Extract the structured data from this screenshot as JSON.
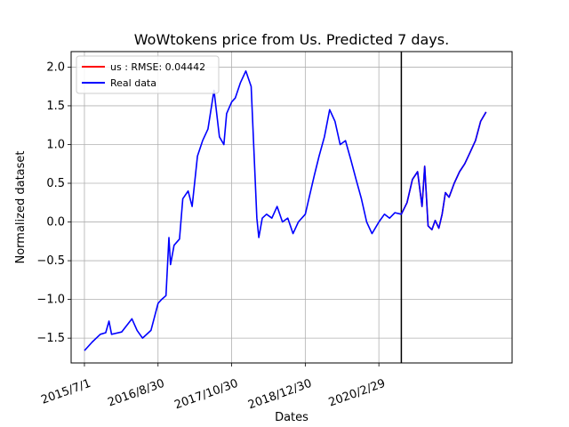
{
  "chart_data": {
    "type": "line",
    "title": "WoWtokens price from Us. Predicted 7 days.",
    "xlabel": "Dates",
    "ylabel": "Normalized dataset",
    "ylim": [
      -1.82,
      2.2
    ],
    "y_ticks": [
      -1.5,
      -1.0,
      -0.5,
      0.0,
      0.5,
      1.0,
      1.5,
      2.0
    ],
    "y_tick_labels": [
      "−1.5",
      "−1.0",
      "−0.5",
      "0.0",
      "0.5",
      "1.0",
      "1.5",
      "2.0"
    ],
    "x_range": [
      "2015-04-15",
      "2022-04-10"
    ],
    "x_ticks": [
      "2015-07-01",
      "2016-08-30",
      "2017-10-30",
      "2018-12-30",
      "2020-02-29"
    ],
    "x_tick_labels": [
      "2015/7/1",
      "2016/8/30",
      "2017/10/30",
      "2018/12/30",
      "2020/2/29"
    ],
    "grid": true,
    "legend_position": "top-left",
    "vertical_line": "2020-07-08",
    "series": [
      {
        "name": "us : RMSE: 0.04442",
        "color": "#ff0000",
        "x": [
          "2020-07-08",
          "2020-08-10",
          "2020-09-10",
          "2020-10-10",
          "2020-11-05",
          "2020-11-20",
          "2020-12-10",
          "2021-01-01",
          "2021-01-20",
          "2021-02-10",
          "2021-03-01",
          "2021-03-20",
          "2021-04-10",
          "2021-05-10",
          "2021-06-10",
          "2021-07-10",
          "2021-08-10",
          "2021-09-10",
          "2021-10-10",
          "2021-11-10"
        ],
        "values": [
          0.1,
          0.25,
          0.55,
          0.65,
          0.2,
          0.72,
          -0.05,
          -0.1,
          0.02,
          -0.08,
          0.1,
          0.38,
          0.32,
          0.5,
          0.65,
          0.75,
          0.9,
          1.05,
          1.3,
          1.42
        ]
      },
      {
        "name": "Real data",
        "color": "#0000ff",
        "x": [
          "2015-07-01",
          "2015-08-15",
          "2015-10-01",
          "2015-11-01",
          "2015-11-20",
          "2015-12-05",
          "2016-02-01",
          "2016-04-01",
          "2016-05-01",
          "2016-06-01",
          "2016-07-20",
          "2016-08-30",
          "2016-09-20",
          "2016-10-15",
          "2016-11-01",
          "2016-11-10",
          "2016-12-01",
          "2017-01-01",
          "2017-01-20",
          "2017-02-20",
          "2017-03-15",
          "2017-04-15",
          "2017-05-15",
          "2017-06-15",
          "2017-07-20",
          "2017-08-20",
          "2017-09-15",
          "2017-10-01",
          "2017-10-30",
          "2017-11-20",
          "2017-12-20",
          "2018-01-20",
          "2018-02-20",
          "2018-03-25",
          "2018-04-05",
          "2018-04-25",
          "2018-05-20",
          "2018-06-20",
          "2018-07-20",
          "2018-08-20",
          "2018-09-20",
          "2018-10-20",
          "2018-11-20",
          "2018-12-30",
          "2019-01-20",
          "2019-02-20",
          "2019-03-20",
          "2019-04-20",
          "2019-05-20",
          "2019-06-20",
          "2019-07-20",
          "2019-08-20",
          "2019-09-20",
          "2019-10-20",
          "2019-11-20",
          "2019-12-20",
          "2020-01-20",
          "2020-02-29",
          "2020-04-01",
          "2020-05-01",
          "2020-06-01",
          "2020-07-08",
          "2020-08-10",
          "2020-09-10",
          "2020-10-10",
          "2020-11-05",
          "2020-11-20",
          "2020-12-10",
          "2021-01-01",
          "2021-01-20",
          "2021-02-10",
          "2021-03-01",
          "2021-03-20",
          "2021-04-10",
          "2021-05-10",
          "2021-06-10",
          "2021-07-10",
          "2021-08-10",
          "2021-09-10",
          "2021-10-10",
          "2021-11-10"
        ],
        "values": [
          -1.66,
          -1.55,
          -1.45,
          -1.43,
          -1.28,
          -1.45,
          -1.42,
          -1.25,
          -1.4,
          -1.5,
          -1.4,
          -1.05,
          -1.0,
          -0.95,
          -0.2,
          -0.55,
          -0.3,
          -0.22,
          0.3,
          0.4,
          0.2,
          0.85,
          1.05,
          1.2,
          1.7,
          1.1,
          1.0,
          1.4,
          1.55,
          1.6,
          1.8,
          1.95,
          1.75,
          0.05,
          -0.2,
          0.05,
          0.1,
          0.05,
          0.2,
          0.0,
          0.05,
          -0.15,
          0.0,
          0.1,
          0.3,
          0.6,
          0.85,
          1.1,
          1.45,
          1.3,
          1.0,
          1.05,
          0.8,
          0.55,
          0.3,
          0.0,
          -0.15,
          0.0,
          0.1,
          0.05,
          0.12,
          0.1,
          0.25,
          0.55,
          0.65,
          0.2,
          0.72,
          -0.05,
          -0.1,
          0.02,
          -0.08,
          0.1,
          0.38,
          0.32,
          0.5,
          0.65,
          0.75,
          0.9,
          1.05,
          1.3,
          1.42
        ]
      }
    ]
  }
}
